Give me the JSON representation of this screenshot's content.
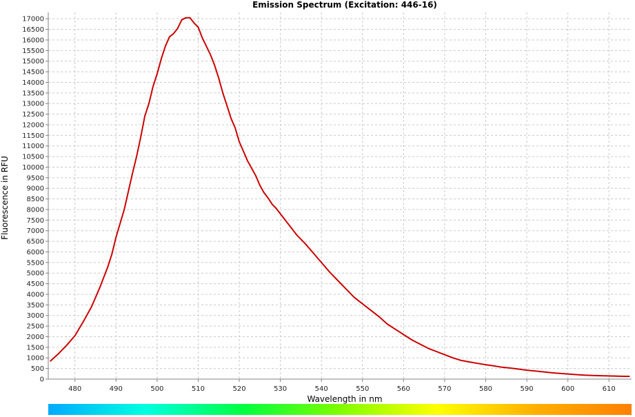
{
  "chart_data": {
    "type": "line",
    "title": "Emission Spectrum (Excitation: 446-16)",
    "xlabel": "Wavelength in nm",
    "ylabel": "Fluorescence in RFU",
    "xlim": [
      473.5,
      615.5
    ],
    "ylim": [
      0,
      17300
    ],
    "x_ticks": [
      480,
      490,
      500,
      510,
      520,
      530,
      540,
      550,
      560,
      570,
      580,
      590,
      600,
      610
    ],
    "y_ticks": [
      0,
      500,
      1000,
      1500,
      2000,
      2500,
      3000,
      3500,
      4000,
      4500,
      5000,
      5500,
      6000,
      6500,
      7000,
      7500,
      8000,
      8500,
      9000,
      9500,
      10000,
      10500,
      11000,
      11500,
      12000,
      12500,
      13000,
      13500,
      14000,
      14500,
      15000,
      15500,
      16000,
      16500,
      17000
    ],
    "grid": true,
    "spectrum_bar": [
      "#00aaff",
      "#00ffe0",
      "#00ff40",
      "#80ff00",
      "#ffff00",
      "#ffb000",
      "#ff8000"
    ],
    "series": [
      {
        "color": "#cc0000",
        "x": [
          474,
          476,
          478,
          480,
          482,
          484,
          486,
          488,
          489,
          490,
          492,
          494,
          495,
          496,
          497,
          498,
          499,
          500,
          501,
          502,
          503,
          504,
          505,
          506,
          507,
          508,
          509,
          510,
          511,
          512,
          513,
          514,
          515,
          516,
          517,
          518,
          519,
          520,
          521,
          522,
          523,
          524,
          525,
          526,
          527,
          528,
          529,
          530,
          532,
          534,
          536,
          538,
          540,
          542,
          544,
          546,
          548,
          550,
          552,
          554,
          556,
          558,
          560,
          562,
          564,
          566,
          568,
          570,
          572,
          574,
          576,
          578,
          580,
          582,
          584,
          586,
          588,
          590,
          592,
          594,
          596,
          598,
          600,
          602,
          604,
          606,
          608,
          610,
          612,
          614,
          615
        ],
        "y": [
          850,
          1200,
          1600,
          2050,
          2700,
          3400,
          4300,
          5300,
          5900,
          6700,
          8000,
          9700,
          10500,
          11400,
          12400,
          13000,
          13800,
          14400,
          15100,
          15700,
          16150,
          16300,
          16550,
          16950,
          17050,
          17050,
          16800,
          16600,
          16100,
          15700,
          15300,
          14800,
          14200,
          13500,
          12900,
          12300,
          11850,
          11200,
          10750,
          10300,
          9950,
          9600,
          9150,
          8800,
          8550,
          8250,
          8050,
          7800,
          7300,
          6800,
          6400,
          5950,
          5500,
          5050,
          4650,
          4250,
          3850,
          3550,
          3250,
          2950,
          2600,
          2350,
          2100,
          1850,
          1650,
          1450,
          1300,
          1150,
          1000,
          880,
          810,
          740,
          680,
          620,
          560,
          520,
          470,
          420,
          380,
          340,
          300,
          270,
          240,
          210,
          190,
          170,
          160,
          150,
          140,
          130,
          130
        ]
      }
    ]
  }
}
